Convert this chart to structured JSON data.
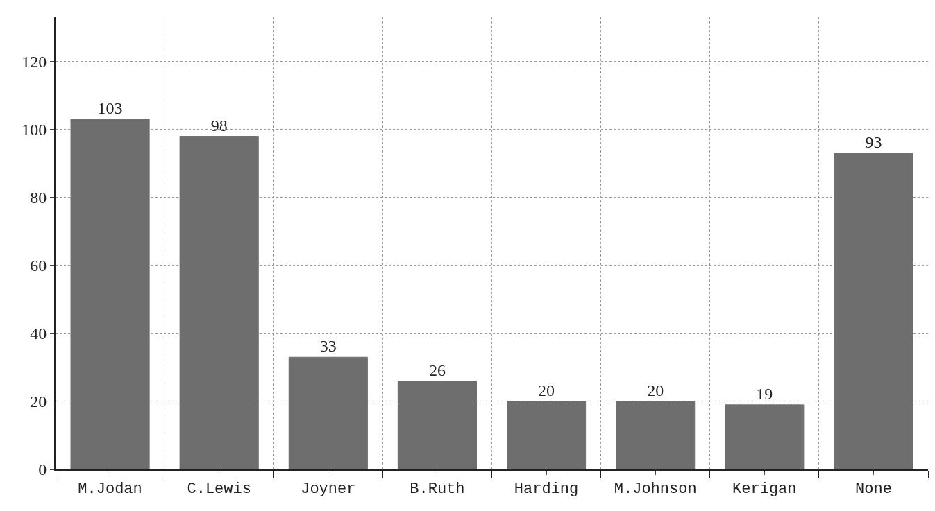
{
  "chart_data": {
    "type": "bar",
    "categories": [
      "M.Jodan",
      "C.Lewis",
      "Joyner",
      "B.Ruth",
      "Harding",
      "M.Johnson",
      "Kerigan",
      "None"
    ],
    "values": [
      103,
      98,
      33,
      26,
      20,
      20,
      19,
      93
    ],
    "color": "#6e6e6e",
    "data_labels": true,
    "ylim": [
      0,
      133
    ],
    "yticks": [
      0,
      20,
      40,
      60,
      80,
      100,
      120
    ],
    "grid": true
  }
}
